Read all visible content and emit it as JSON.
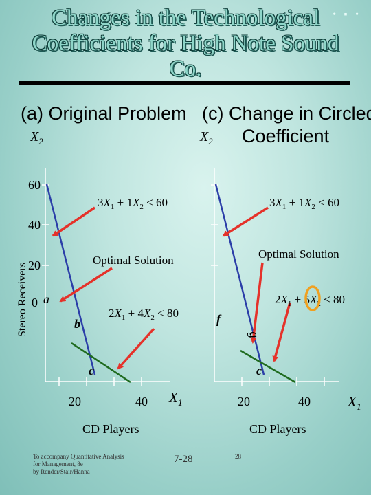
{
  "slide": {
    "title_lines": [
      "Changes in the Technological",
      "Coefficients for High Note Sound",
      "Co."
    ],
    "decor": "• ▪ •",
    "footer_left_lines": [
      "To accompany Quantitative Analysis",
      "for Management, 8e",
      "by Render/Stair/Hanna"
    ],
    "footer_center": "7-28",
    "footer_right": "28"
  },
  "left": {
    "heading": "(a) Original Problem",
    "y_axis_var": "X2",
    "y_axis_title": "Stereo Receivers",
    "x_axis_title": "CD Players",
    "x_axis_var": "X1",
    "x_ticks": [
      "20",
      "40"
    ],
    "y_ticks": [
      "60",
      "40",
      "20",
      "0"
    ],
    "constraint_1": "3X1 + 1X2 < 60",
    "constraint_2": "2X1 + 4X2 < 80",
    "optimal_label": "Optimal Solution",
    "points": [
      "a",
      "b",
      "c"
    ]
  },
  "right": {
    "heading_line1": "(c) Change in Circled",
    "heading_line2": "Coefficient",
    "y_axis_var": "X2",
    "x_axis_title": "CD Players",
    "x_axis_var": "X1",
    "x_ticks": [
      "20",
      "40"
    ],
    "constraint_1": "3X1 + 1X2 < 60",
    "constraint_2": "2X1 + 5X2 < 80",
    "optimal_label": "Optimal Solution",
    "points": [
      "f",
      "g",
      "c"
    ]
  },
  "colors": {
    "constraint_blue": "#2b3ea8",
    "constraint_green": "#1f6b1f",
    "arrow_red": "#e5322a",
    "circle_orange": "#f0a020"
  },
  "chart_data": [
    {
      "type": "line",
      "title": "(a) Original Problem",
      "xlabel": "CD Players",
      "ylabel": "Stereo Receivers",
      "x_var": "X1",
      "y_var": "X2",
      "xlim": [
        0,
        50
      ],
      "ylim": [
        0,
        60
      ],
      "x_ticks": [
        20,
        40
      ],
      "y_ticks": [
        0,
        20,
        40,
        60
      ],
      "series": [
        {
          "name": "3X1 + 1X2 < 60",
          "points": [
            [
              0,
              60
            ],
            [
              20,
              0
            ]
          ],
          "color": "#2b3ea8"
        },
        {
          "name": "2X1 + 4X2 < 80",
          "points": [
            [
              16,
              12
            ],
            [
              40,
              0
            ]
          ],
          "color": "#1f6b1f"
        }
      ],
      "labeled_points": [
        {
          "label": "a",
          "x": 0,
          "y": 0
        },
        {
          "label": "b",
          "x": 16,
          "y": 12
        },
        {
          "label": "c",
          "x": 20,
          "y": 0
        }
      ]
    },
    {
      "type": "line",
      "title": "(c) Change in Circled Coefficient",
      "xlabel": "CD Players",
      "x_var": "X1",
      "y_var": "X2",
      "xlim": [
        0,
        50
      ],
      "ylim": [
        0,
        60
      ],
      "x_ticks": [
        20,
        40
      ],
      "series": [
        {
          "name": "3X1 + 1X2 < 60",
          "points": [
            [
              0,
              60
            ],
            [
              20,
              0
            ]
          ],
          "color": "#2b3ea8"
        },
        {
          "name": "2X1 + 5X2 < 80",
          "points": [
            [
              17.1,
              8.6
            ],
            [
              40,
              0
            ]
          ],
          "color": "#1f6b1f"
        }
      ],
      "labeled_points": [
        {
          "label": "f",
          "x": 0,
          "y": 16
        },
        {
          "label": "g",
          "x": 17.1,
          "y": 8.6
        },
        {
          "label": "c",
          "x": 20,
          "y": 0
        }
      ]
    }
  ]
}
